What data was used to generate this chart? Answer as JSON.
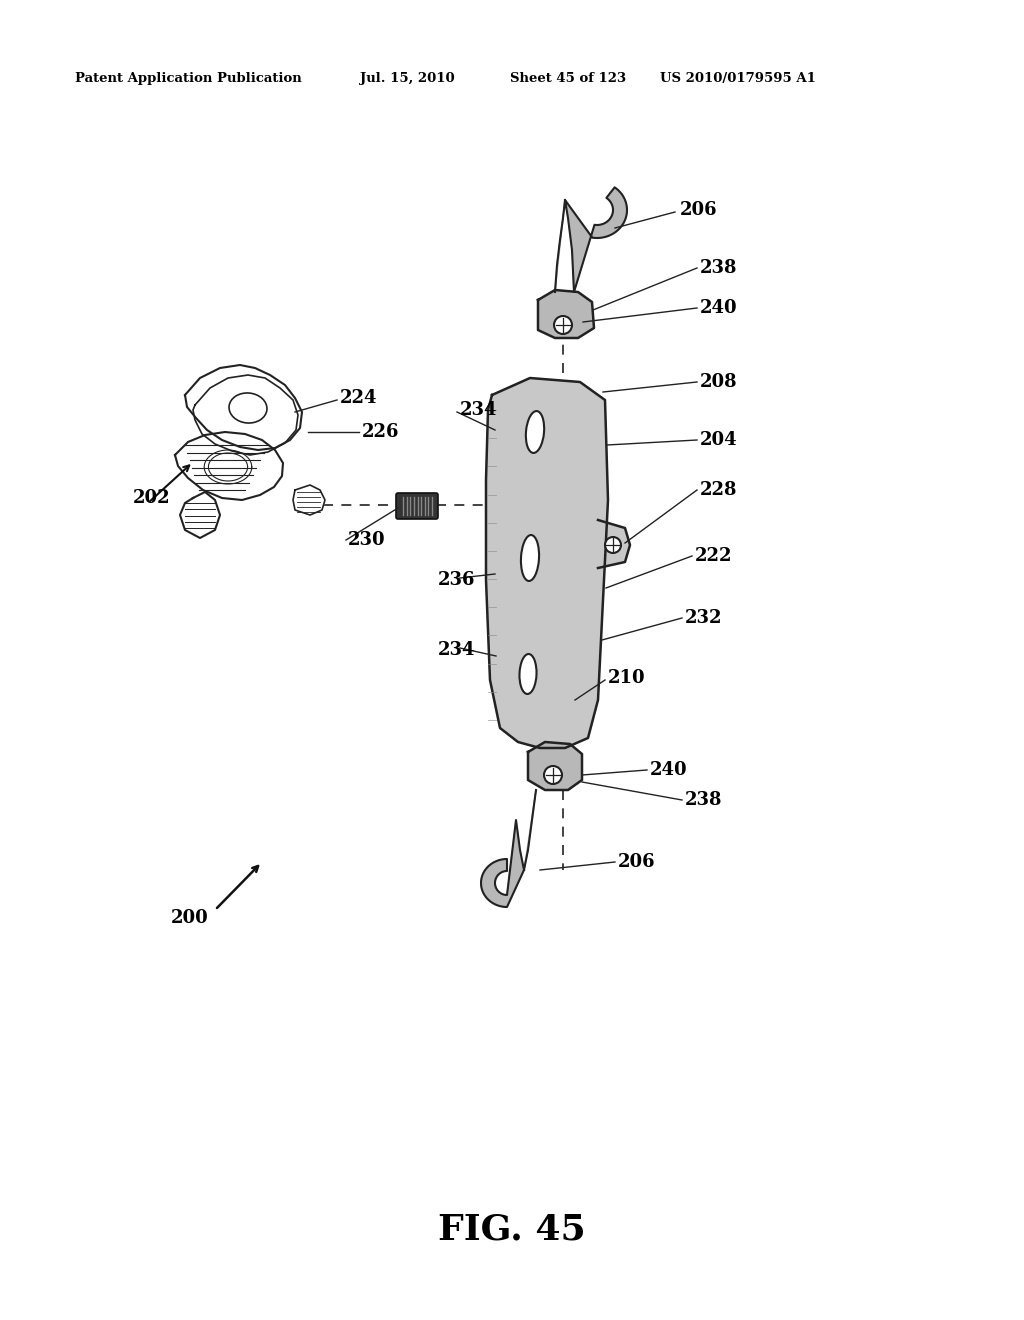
{
  "background_color": "#ffffff",
  "header_text": "Patent Application Publication",
  "header_date": "Jul. 15, 2010",
  "header_sheet": "Sheet 45 of 123",
  "header_patent": "US 2010/0179595 A1",
  "figure_label": "FIG. 45",
  "plate_color": "#c8c8c8",
  "plate_edge": "#222222",
  "hook_fill": "#b8b8b8",
  "hook_edge": "#222222",
  "label_fontsize": 13,
  "label_color": "#000000"
}
